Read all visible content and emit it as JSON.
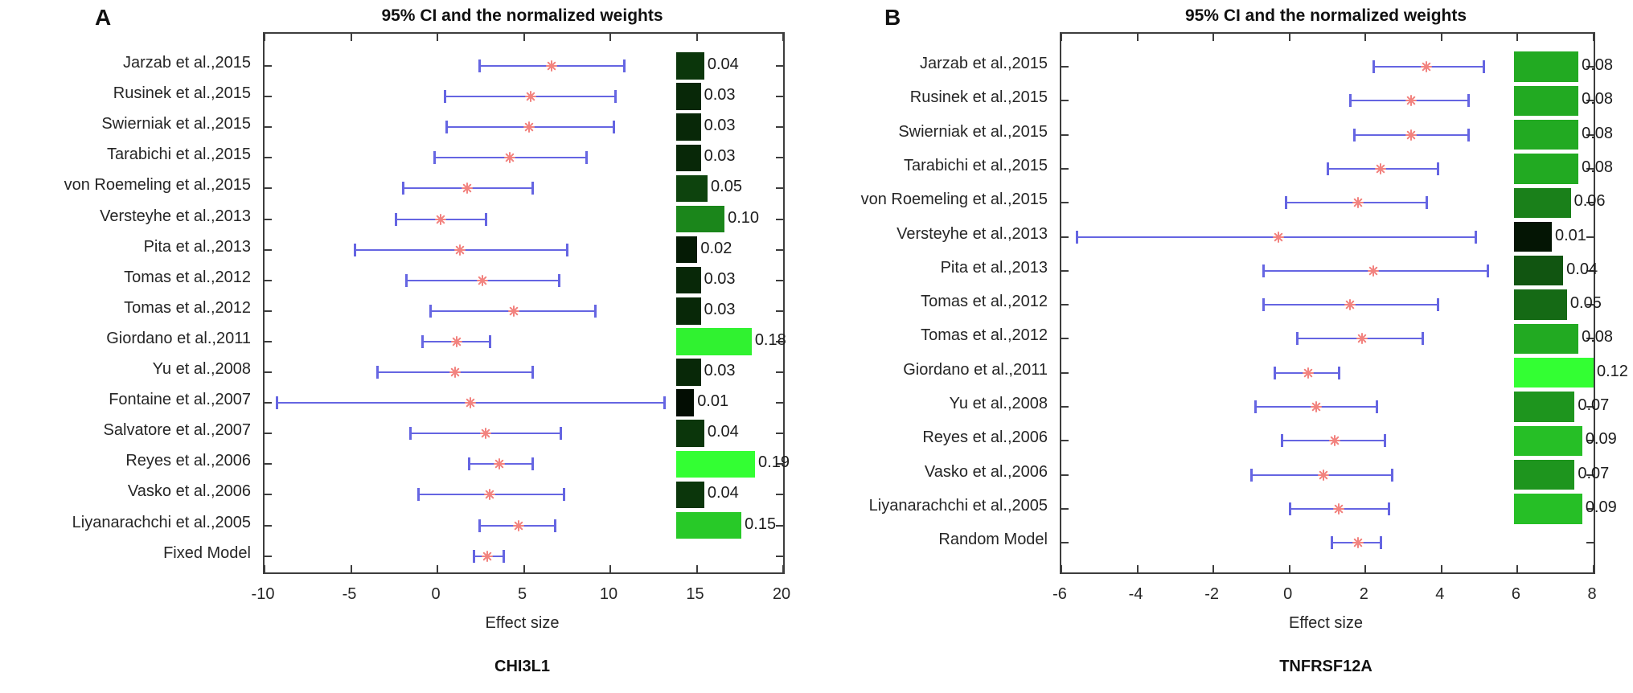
{
  "figure_caption": "95% CI and the normalized weights forest plots",
  "background_color": "#ffffff",
  "error_bar_color": "#6565e2",
  "marker_color": "#f2837f",
  "chart_data": [
    {
      "type": "forest",
      "panel_letter": "A",
      "title": "95% CI and the normalized weights",
      "xlabel": "Effect size",
      "gene_label": "CHI3L1",
      "xlim": [
        -10,
        20
      ],
      "xticks": [
        -10,
        -5,
        0,
        5,
        10,
        15,
        20
      ],
      "legend": "bar brightness proportional to normalized weight",
      "studies": [
        {
          "label": "Jarzab et al.,2015",
          "ci_low": 2.4,
          "effect": 6.6,
          "ci_high": 10.8,
          "weight": 0.04,
          "bar_color": "#0b360b"
        },
        {
          "label": "Rusinek et al.,2015",
          "ci_low": 0.4,
          "effect": 5.4,
          "ci_high": 10.3,
          "weight": 0.03,
          "bar_color": "#082808"
        },
        {
          "label": "Swierniak et al.,2015",
          "ci_low": 0.5,
          "effect": 5.3,
          "ci_high": 10.2,
          "weight": 0.03,
          "bar_color": "#082808"
        },
        {
          "label": "Tarabichi et al.,2015",
          "ci_low": -0.2,
          "effect": 4.2,
          "ci_high": 8.6,
          "weight": 0.03,
          "bar_color": "#082808"
        },
        {
          "label": "von Roemeling et al.,2015",
          "ci_low": -2.0,
          "effect": 1.7,
          "ci_high": 5.5,
          "weight": 0.05,
          "bar_color": "#0d430d"
        },
        {
          "label": "Versteyhe et al.,2013",
          "ci_low": -2.4,
          "effect": 0.2,
          "ci_high": 2.8,
          "weight": 0.1,
          "bar_color": "#1b861b"
        },
        {
          "label": "Pita et al.,2013",
          "ci_low": -4.8,
          "effect": 1.3,
          "ci_high": 7.5,
          "weight": 0.02,
          "bar_color": "#051b05"
        },
        {
          "label": "Tomas et al.,2012",
          "ci_low": -1.8,
          "effect": 2.6,
          "ci_high": 7.0,
          "weight": 0.03,
          "bar_color": "#082808"
        },
        {
          "label": "Tomas et al.,2012",
          "ci_low": -0.4,
          "effect": 4.4,
          "ci_high": 9.1,
          "weight": 0.03,
          "bar_color": "#082808"
        },
        {
          "label": "Giordano et al.,2011",
          "ci_low": -0.9,
          "effect": 1.1,
          "ci_high": 3.0,
          "weight": 0.18,
          "bar_color": "#30f230"
        },
        {
          "label": "Yu et al.,2008",
          "ci_low": -3.5,
          "effect": 1.0,
          "ci_high": 5.5,
          "weight": 0.03,
          "bar_color": "#082808"
        },
        {
          "label": "Fontaine et al.,2007",
          "ci_low": -9.3,
          "effect": 1.9,
          "ci_high": 13.1,
          "weight": 0.01,
          "bar_color": "#030d03"
        },
        {
          "label": "Salvatore et al.,2007",
          "ci_low": -1.6,
          "effect": 2.8,
          "ci_high": 7.1,
          "weight": 0.04,
          "bar_color": "#0b360b"
        },
        {
          "label": "Reyes et al.,2006",
          "ci_low": 1.8,
          "effect": 3.6,
          "ci_high": 5.5,
          "weight": 0.19,
          "bar_color": "#33ff33"
        },
        {
          "label": "Vasko et al.,2006",
          "ci_low": -1.1,
          "effect": 3.0,
          "ci_high": 7.3,
          "weight": 0.04,
          "bar_color": "#0b360b"
        },
        {
          "label": "Liyanarachchi et al.,2005",
          "ci_low": 2.4,
          "effect": 4.7,
          "ci_high": 6.8,
          "weight": 0.15,
          "bar_color": "#28c928"
        },
        {
          "label": "Fixed Model",
          "ci_low": 2.1,
          "effect": 2.9,
          "ci_high": 3.8,
          "weight": null,
          "bar_color": null
        }
      ]
    },
    {
      "type": "forest",
      "panel_letter": "B",
      "title": "95% CI and the normalized weights",
      "xlabel": "Effect size",
      "gene_label": "TNFRSF12A",
      "xlim": [
        -6,
        8
      ],
      "xticks": [
        -6,
        -4,
        -2,
        0,
        2,
        4,
        6,
        8
      ],
      "legend": "bar brightness proportional to normalized weight",
      "studies": [
        {
          "label": "Jarzab et al.,2015",
          "ci_low": 2.2,
          "effect": 3.6,
          "ci_high": 5.1,
          "weight": 0.08,
          "bar_color": "#22aa22"
        },
        {
          "label": "Rusinek et al.,2015",
          "ci_low": 1.6,
          "effect": 3.2,
          "ci_high": 4.7,
          "weight": 0.08,
          "bar_color": "#22aa22"
        },
        {
          "label": "Swierniak et al.,2015",
          "ci_low": 1.7,
          "effect": 3.2,
          "ci_high": 4.7,
          "weight": 0.08,
          "bar_color": "#22aa22"
        },
        {
          "label": "Tarabichi et al.,2015",
          "ci_low": 1.0,
          "effect": 2.4,
          "ci_high": 3.9,
          "weight": 0.08,
          "bar_color": "#22aa22"
        },
        {
          "label": "von Roemeling et al.,2015",
          "ci_low": -0.1,
          "effect": 1.8,
          "ci_high": 3.6,
          "weight": 0.06,
          "bar_color": "#1a801a"
        },
        {
          "label": "Versteyhe et al.,2013",
          "ci_low": -5.6,
          "effect": -0.3,
          "ci_high": 4.9,
          "weight": 0.01,
          "bar_color": "#041504"
        },
        {
          "label": "Pita et al.,2013",
          "ci_low": -0.7,
          "effect": 2.2,
          "ci_high": 5.2,
          "weight": 0.04,
          "bar_color": "#115511"
        },
        {
          "label": "Tomas et al.,2012",
          "ci_low": -0.7,
          "effect": 1.6,
          "ci_high": 3.9,
          "weight": 0.05,
          "bar_color": "#156a15"
        },
        {
          "label": "Tomas et al.,2012",
          "ci_low": 0.2,
          "effect": 1.9,
          "ci_high": 3.5,
          "weight": 0.08,
          "bar_color": "#22aa22"
        },
        {
          "label": "Giordano et al.,2011",
          "ci_low": -0.4,
          "effect": 0.5,
          "ci_high": 1.3,
          "weight": 0.12,
          "bar_color": "#33ff33"
        },
        {
          "label": "Yu et al.,2008",
          "ci_low": -0.9,
          "effect": 0.7,
          "ci_high": 2.3,
          "weight": 0.07,
          "bar_color": "#1e951e"
        },
        {
          "label": "Reyes et al.,2006",
          "ci_low": -0.2,
          "effect": 1.2,
          "ci_high": 2.5,
          "weight": 0.09,
          "bar_color": "#26bf26"
        },
        {
          "label": "Vasko et al.,2006",
          "ci_low": -1.0,
          "effect": 0.9,
          "ci_high": 2.7,
          "weight": 0.07,
          "bar_color": "#1e951e"
        },
        {
          "label": "Liyanarachchi et al.,2005",
          "ci_low": 0.0,
          "effect": 1.3,
          "ci_high": 2.6,
          "weight": 0.09,
          "bar_color": "#26bf26"
        },
        {
          "label": "Random Model",
          "ci_low": 1.1,
          "effect": 1.8,
          "ci_high": 2.4,
          "weight": null,
          "bar_color": null
        }
      ]
    }
  ]
}
